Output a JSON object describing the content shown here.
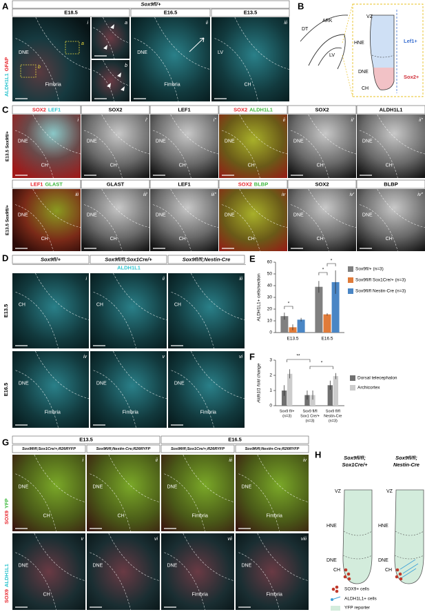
{
  "panels": {
    "A": {
      "label": "A",
      "genotype": "Sox9fl/+",
      "stages": [
        "E18.5",
        "E16.5",
        "E13.5"
      ],
      "channels": [
        {
          "name": "ALDH1L1",
          "color": "#2ec4cf"
        },
        {
          "name": "GFAP",
          "color": "#e8262d"
        }
      ],
      "boxes": [
        "a",
        "b"
      ],
      "images": [
        {
          "numeral": "i",
          "labels": [
            "DNE",
            "Fimbria"
          ]
        },
        {
          "numeral": "a"
        },
        {
          "numeral": "b"
        },
        {
          "numeral": "ii",
          "labels": [
            "DNE",
            "Fimbria"
          ]
        },
        {
          "numeral": "iii",
          "labels": [
            "LV",
            "CH"
          ]
        }
      ]
    },
    "B": {
      "label": "B",
      "labels": [
        "DT",
        "ARK",
        "LV",
        "VZ",
        "HNE",
        "DNE",
        "CH"
      ],
      "markers": [
        {
          "name": "Lef1+",
          "color": "#3a6fd0"
        },
        {
          "name": "Sox2+",
          "color": "#d0303a"
        }
      ]
    },
    "C": {
      "label": "C",
      "rows": [
        {
          "side": "E13.5 Sox9fl/+",
          "panels": [
            {
              "numeral": "i",
              "channels": [
                {
                  "name": "SOX2",
                  "color": "#e8262d"
                },
                {
                  "name": "LEF1",
                  "color": "#2ec4cf"
                }
              ],
              "labels": [
                "DNE",
                "CH"
              ]
            },
            {
              "numeral": "i'",
              "channels": [
                {
                  "name": "SOX2",
                  "color": "#000000"
                }
              ],
              "labels": [
                "DNE",
                "CH"
              ]
            },
            {
              "numeral": "i''",
              "channels": [
                {
                  "name": "LEF1",
                  "color": "#000000"
                }
              ],
              "labels": [
                "DNE",
                "CH"
              ]
            },
            {
              "numeral": "ii",
              "channels": [
                {
                  "name": "SOX2",
                  "color": "#e8262d"
                },
                {
                  "name": "ALDH1L1",
                  "color": "#3cb83c"
                }
              ],
              "labels": [
                "DNE",
                "CH"
              ]
            },
            {
              "numeral": "ii'",
              "channels": [
                {
                  "name": "SOX2",
                  "color": "#000000"
                }
              ],
              "labels": [
                "DNE",
                "CH"
              ]
            },
            {
              "numeral": "ii''",
              "channels": [
                {
                  "name": "ALDH1L1",
                  "color": "#000000"
                }
              ],
              "labels": [
                "DNE",
                "CH"
              ]
            }
          ]
        },
        {
          "side": "E13.5 Sox9fl/+",
          "panels": [
            {
              "numeral": "iii",
              "channels": [
                {
                  "name": "LEF1",
                  "color": "#e8262d"
                },
                {
                  "name": "GLAST",
                  "color": "#3cb83c"
                }
              ],
              "labels": [
                "DNE",
                "CH"
              ]
            },
            {
              "numeral": "iii'",
              "channels": [
                {
                  "name": "GLAST",
                  "color": "#000000"
                }
              ],
              "labels": [
                "DNE",
                "CH"
              ]
            },
            {
              "numeral": "iii''",
              "channels": [
                {
                  "name": "LEF1",
                  "color": "#000000"
                }
              ],
              "labels": [
                "DNE",
                "CH"
              ]
            },
            {
              "numeral": "iv",
              "channels": [
                {
                  "name": "SOX2",
                  "color": "#e8262d"
                },
                {
                  "name": "BLBP",
                  "color": "#3cb83c"
                }
              ],
              "labels": [
                "DNE",
                "CH"
              ]
            },
            {
              "numeral": "iv'",
              "channels": [
                {
                  "name": "SOX2",
                  "color": "#000000"
                }
              ],
              "labels": [
                "DNE",
                "CH"
              ]
            },
            {
              "numeral": "iv''",
              "channels": [
                {
                  "name": "BLBP",
                  "color": "#000000"
                }
              ],
              "labels": [
                "DNE",
                "CH"
              ]
            }
          ]
        }
      ]
    },
    "D": {
      "label": "D",
      "genotypes": [
        "Sox9fl/+",
        "Sox9fl/fl;Sox1Cre/+",
        "Sox9fl/fl;Nestin-Cre"
      ],
      "marker": "ALDH1L1",
      "rows": [
        {
          "stage": "E13.5",
          "panels": [
            {
              "numeral": "i",
              "labels": [
                "CH"
              ]
            },
            {
              "numeral": "ii",
              "labels": [
                "CH"
              ]
            },
            {
              "numeral": "iii",
              "labels": [
                "CH"
              ]
            }
          ]
        },
        {
          "stage": "E16.5",
          "panels": [
            {
              "numeral": "iv",
              "labels": [
                "DNE",
                "Fimbria"
              ]
            },
            {
              "numeral": "v",
              "labels": [
                "DNE",
                "Fimbria"
              ]
            },
            {
              "numeral": "vi",
              "labels": [
                "DNE",
                "Fimbria"
              ]
            }
          ]
        }
      ]
    },
    "G": {
      "label": "G",
      "stages": [
        "E13.5",
        "E16.5"
      ],
      "genotypes": [
        "Sox9fl/fl;Sox1Cre/+;R26RYFP",
        "Sox9fl/fl;Nestin-Cre;R26RYFP",
        "Sox9fl/fl;Sox1Cre/+;R26RYFP",
        "Sox9fl/fl;Nestin-Cre;R26RYFP"
      ],
      "rows": [
        {
          "channels": [
            {
              "name": "SOX9",
              "color": "#e8262d"
            },
            {
              "name": "YFP",
              "color": "#3cb83c"
            }
          ],
          "panels": [
            {
              "numeral": "i",
              "labels": [
                "DNE",
                "CH"
              ]
            },
            {
              "numeral": "ii",
              "labels": [
                "DNE",
                "CH"
              ]
            },
            {
              "numeral": "iii",
              "labels": [
                "DNE",
                "Fimbria"
              ]
            },
            {
              "numeral": "iv",
              "labels": [
                "DNE",
                "Fimbria"
              ]
            }
          ]
        },
        {
          "channels": [
            {
              "name": "SOX9",
              "color": "#e8262d"
            },
            {
              "name": "ALDH1L1",
              "color": "#2ec4cf"
            }
          ],
          "panels": [
            {
              "numeral": "v",
              "labels": [
                "DNE",
                "CH"
              ]
            },
            {
              "numeral": "vi",
              "labels": [
                "DNE"
              ]
            },
            {
              "numeral": "vii",
              "labels": [
                "DNE",
                "Fimbria"
              ]
            },
            {
              "numeral": "viii",
              "labels": [
                "DNE",
                "Fimbria"
              ]
            }
          ]
        }
      ]
    },
    "H": {
      "label": "H",
      "diagrams": [
        {
          "title": [
            "Sox9fl/fl;",
            "Sox1Cre/+"
          ],
          "labels": [
            "VZ",
            "HNE",
            "DNE",
            "CH"
          ]
        },
        {
          "title": [
            "Sox9fl/fl;",
            "Nestin-Cre"
          ],
          "labels": [
            "VZ",
            "HNE",
            "DNE",
            "CH"
          ]
        }
      ],
      "legend": [
        "SOX9+ cells",
        "ALDH1L1+ cells",
        "YFP reporter"
      ]
    }
  },
  "chart_data": [
    {
      "type": "bar",
      "label": "E",
      "ylabel": "ALDH1L1+ cells/section",
      "categories": [
        "E13.5",
        "E16.5"
      ],
      "series": [
        {
          "name": "Sox9fl/+ (n=3)",
          "color": "#808080",
          "values": [
            14,
            39
          ],
          "errors": [
            3,
            5
          ]
        },
        {
          "name": "Sox9fl/fl Sox1Cre/+ (n=3)",
          "color": "#e07b39",
          "values": [
            4.5,
            15.5
          ],
          "errors": [
            2.5,
            1
          ]
        },
        {
          "name": "Sox9fl/fl Nestin-Cre (n=3)",
          "color": "#4a86c5",
          "values": [
            11,
            43
          ],
          "errors": [
            1.5,
            10
          ]
        }
      ],
      "ylim": [
        0,
        60
      ],
      "yticks": [
        0,
        10,
        20,
        30,
        40,
        50,
        60
      ],
      "annotations": [
        "*",
        "*",
        "*"
      ]
    },
    {
      "type": "bar",
      "label": "F",
      "ylabel": "Aldh1l1 fold change",
      "categories": [
        [
          "Sox9 fl/+",
          "(n=3)"
        ],
        [
          "Sox9 fl/fl",
          "Sox1 Cre/+",
          "(n=3)"
        ],
        [
          "Sox9 fl/fl",
          "Nestin-Cre",
          "(n=3)"
        ]
      ],
      "series": [
        {
          "name": "Dorsal telecephalon",
          "color": "#707070",
          "values": [
            1.0,
            0.7,
            1.35
          ],
          "errors": [
            0.35,
            0.3,
            0.3
          ]
        },
        {
          "name": "Archicortex",
          "color": "#cccccc",
          "values": [
            2.1,
            0.7,
            1.95
          ],
          "errors": [
            0.3,
            0.3,
            0.2
          ]
        }
      ],
      "ylim": [
        0,
        3
      ],
      "yticks": [
        0,
        1,
        2,
        3
      ],
      "annotations": [
        "**",
        "*"
      ]
    }
  ]
}
